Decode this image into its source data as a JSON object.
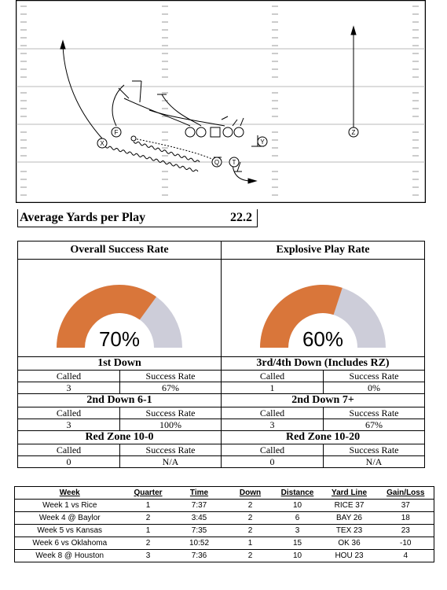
{
  "play": {
    "players": [
      {
        "label": "F"
      },
      {
        "label": "X"
      },
      {
        "label": "Q"
      },
      {
        "label": "T"
      },
      {
        "label": "Y"
      },
      {
        "label": "Z"
      }
    ]
  },
  "avg_yards": {
    "label": "Average Yards per Play",
    "value": "22.2"
  },
  "stats": {
    "overall_title": "Overall Success Rate",
    "explosive_title": "Explosive Play Rate",
    "overall_pct": 70,
    "overall_label": "70%",
    "explosive_pct": 60,
    "explosive_label": "60%",
    "gauge_fill_color": "#D9763A",
    "gauge_empty_color": "#CDCDD9",
    "called_label": "Called",
    "success_label": "Success Rate",
    "sections": [
      {
        "left": {
          "title": "1st Down",
          "called": "3",
          "success": "67%"
        },
        "right": {
          "title": "3rd/4th Down (Includes RZ)",
          "called": "1",
          "success": "0%"
        }
      },
      {
        "left": {
          "title": "2nd Down 6-1",
          "called": "3",
          "success": "100%"
        },
        "right": {
          "title": "2nd Down 7+",
          "called": "3",
          "success": "67%"
        }
      },
      {
        "left": {
          "title": "Red Zone 10-0",
          "called": "0",
          "success": "N/A"
        },
        "right": {
          "title": "Red Zone 10-20",
          "called": "0",
          "success": "N/A"
        }
      }
    ]
  },
  "games": {
    "headers": [
      "Week",
      "Quarter",
      "Time",
      "Down",
      "Distance",
      "Yard Line",
      "Gain/Loss"
    ],
    "rows": [
      [
        "Week 1 vs Rice",
        "1",
        "7:37",
        "2",
        "10",
        "RICE 37",
        "37"
      ],
      [
        "Week 4 @ Baylor",
        "2",
        "3:45",
        "2",
        "6",
        "BAY 26",
        "18"
      ],
      [
        "Week 5 vs Kansas",
        "1",
        "7:35",
        "2",
        "3",
        "TEX 23",
        "23"
      ],
      [
        "Week 6 vs Oklahoma",
        "2",
        "10:52",
        "1",
        "15",
        "OK 36",
        "-10"
      ],
      [
        "Week 8 @ Houston",
        "3",
        "7:36",
        "2",
        "10",
        "HOU 23",
        "4"
      ]
    ]
  }
}
